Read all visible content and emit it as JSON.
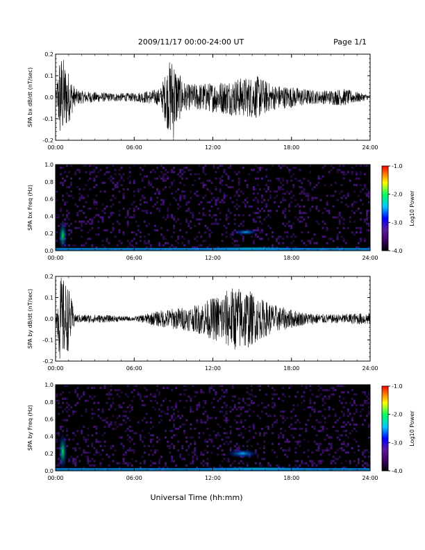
{
  "header": {
    "title": "2009/11/17  00:00-24:00 UT",
    "page": "Page 1/1"
  },
  "xaxis": {
    "title": "Universal Time (hh:mm)",
    "ticks": [
      "00:00",
      "06:00",
      "12:00",
      "18:00",
      "24:00"
    ],
    "range_hours": [
      0,
      24
    ]
  },
  "colorbar": {
    "label": "Log10 Power",
    "ticks": [
      "-1.0",
      "-2.0",
      "-3.0",
      "-4.0"
    ],
    "range": [
      -4.0,
      -1.0
    ],
    "colormap": [
      "#000000",
      "#3a0060",
      "#5a1aa0",
      "#0000ff",
      "#00c8ff",
      "#00ff60",
      "#ffff00",
      "#ff8000",
      "#ff0000"
    ]
  },
  "chart_data": [
    {
      "type": "line",
      "title": "",
      "xlabel": "",
      "ylabel": "SPA bx dB/dt (nT/sec)",
      "ylim": [
        -0.2,
        0.2
      ],
      "yticks": [
        "0.2",
        "0.1",
        "0.0",
        "-0.1",
        "-0.2"
      ],
      "xlim": [
        0,
        24
      ],
      "series": [
        {
          "points": [
            [
              0.0,
              0.0
            ],
            [
              0.3,
              0.2
            ],
            [
              0.5,
              -0.2
            ],
            [
              0.7,
              0.17
            ],
            [
              1.0,
              -0.12
            ],
            [
              1.5,
              0.04
            ],
            [
              2.0,
              -0.03
            ],
            [
              4.0,
              0.02
            ],
            [
              6.0,
              -0.02
            ],
            [
              8.0,
              0.04
            ],
            [
              8.6,
              0.16
            ],
            [
              9.0,
              -0.2
            ],
            [
              9.3,
              0.12
            ],
            [
              10.0,
              -0.06
            ],
            [
              12.0,
              0.07
            ],
            [
              14.0,
              0.09
            ],
            [
              15.5,
              -0.1
            ],
            [
              16.5,
              0.06
            ],
            [
              18.0,
              -0.05
            ],
            [
              20.0,
              0.03
            ],
            [
              22.0,
              -0.04
            ],
            [
              24.0,
              0.01
            ]
          ]
        }
      ]
    },
    {
      "type": "heatmap",
      "title": "",
      "xlabel": "",
      "ylabel": "SPA bx Freq (Hz)",
      "ylim": [
        0.0,
        1.0
      ],
      "yticks": [
        "1.0",
        "0.8",
        "0.6",
        "0.4",
        "0.2",
        "0.0"
      ],
      "xlim": [
        0,
        24
      ],
      "zlim": [
        -4.0,
        -1.0
      ],
      "features": [
        {
          "x": [
            0.2,
            0.9
          ],
          "y": [
            0.0,
            0.35
          ],
          "level": -2.6
        },
        {
          "x": [
            10.0,
            20.0
          ],
          "y": [
            0.0,
            0.05
          ],
          "level": -2.8
        },
        {
          "x": [
            13.5,
            15.5
          ],
          "y": [
            0.18,
            0.25
          ],
          "level": -3.0
        }
      ]
    },
    {
      "type": "line",
      "title": "",
      "xlabel": "",
      "ylabel": "SPA by dB/dt (nT/sec)",
      "ylim": [
        -0.2,
        0.2
      ],
      "yticks": [
        "0.2",
        "0.1",
        "0.0",
        "-0.1",
        "-0.2"
      ],
      "xlim": [
        0,
        24
      ],
      "series": [
        {
          "points": [
            [
              0.0,
              0.0
            ],
            [
              0.3,
              0.2
            ],
            [
              0.5,
              -0.2
            ],
            [
              0.7,
              0.18
            ],
            [
              1.0,
              -0.15
            ],
            [
              1.5,
              0.02
            ],
            [
              3.0,
              -0.02
            ],
            [
              6.0,
              0.01
            ],
            [
              8.0,
              -0.04
            ],
            [
              9.0,
              0.05
            ],
            [
              10.5,
              -0.06
            ],
            [
              12.0,
              0.1
            ],
            [
              13.5,
              0.15
            ],
            [
              14.5,
              -0.15
            ],
            [
              15.5,
              0.1
            ],
            [
              17.0,
              -0.06
            ],
            [
              19.0,
              0.03
            ],
            [
              21.0,
              -0.02
            ],
            [
              24.0,
              -0.03
            ]
          ]
        }
      ]
    },
    {
      "type": "heatmap",
      "title": "",
      "xlabel": "",
      "ylabel": "SPA by Freq (Hz)",
      "ylim": [
        0.0,
        1.0
      ],
      "yticks": [
        "1.0",
        "0.8",
        "0.6",
        "0.4",
        "0.2",
        "0.0"
      ],
      "xlim": [
        0,
        24
      ],
      "zlim": [
        -4.0,
        -1.0
      ],
      "features": [
        {
          "x": [
            0.2,
            0.9
          ],
          "y": [
            0.0,
            0.45
          ],
          "level": -2.5
        },
        {
          "x": [
            10.0,
            21.0
          ],
          "y": [
            0.0,
            0.05
          ],
          "level": -2.8
        },
        {
          "x": [
            13.0,
            15.5
          ],
          "y": [
            0.15,
            0.25
          ],
          "level": -3.0
        }
      ]
    }
  ]
}
